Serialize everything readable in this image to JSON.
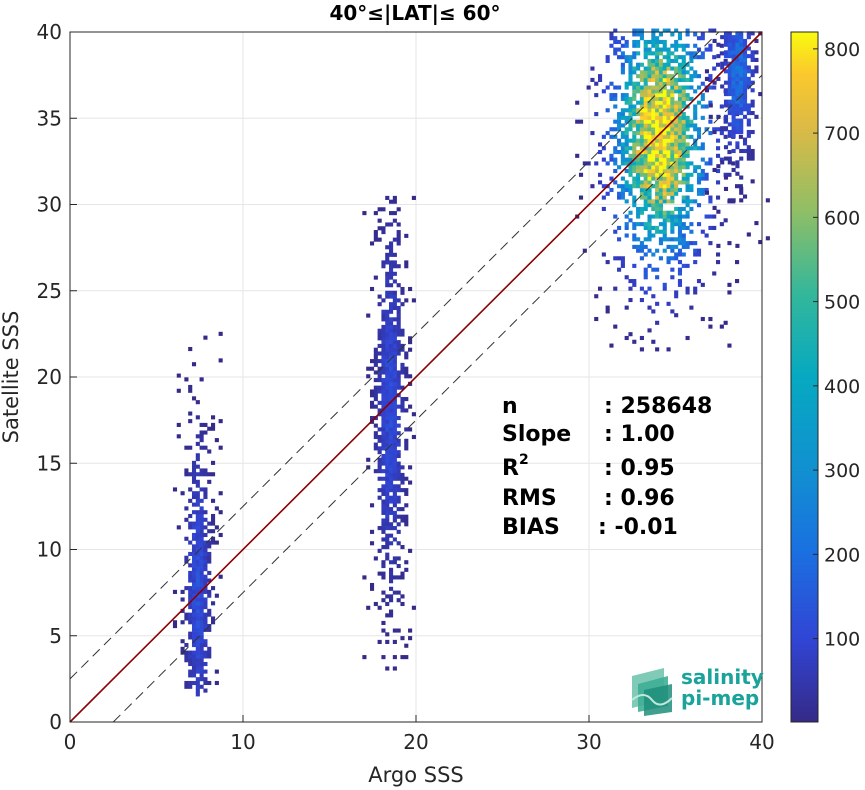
{
  "chart_data": {
    "type": "heatmap",
    "title": "40°≤|LAT|≤ 60°",
    "xlabel": "Argo SSS",
    "ylabel": "Satellite SSS",
    "xlim": [
      0,
      40
    ],
    "ylim": [
      0,
      40
    ],
    "xticks": [
      "0",
      "10",
      "20",
      "30",
      "40"
    ],
    "yticks": [
      "0",
      "5",
      "10",
      "15",
      "20",
      "25",
      "30",
      "35",
      "40"
    ],
    "grid": true,
    "colorbar": {
      "range": [
        1,
        820
      ],
      "ticks": [
        "100",
        "200",
        "300",
        "400",
        "500",
        "600",
        "700",
        "800"
      ],
      "colormap": "parula"
    },
    "reference_lines": [
      {
        "name": "1:1",
        "slope": 1,
        "intercept": 0,
        "style": "solid",
        "color": "#8b0000"
      },
      {
        "name": "+2.5 offset",
        "slope": 1,
        "intercept": 2.5,
        "style": "dashed",
        "color": "#333333"
      },
      {
        "name": "-2.5 offset",
        "slope": 1,
        "intercept": -2.5,
        "style": "dashed",
        "color": "#333333"
      }
    ],
    "clusters": [
      {
        "x_center": 7.3,
        "x_spread": 0.45,
        "y_range": [
          1.5,
          23.0
        ],
        "y_peak": 7.5,
        "peak_count": 120
      },
      {
        "x_center": 18.4,
        "x_spread": 0.5,
        "y_range": [
          3.0,
          30.5
        ],
        "y_peak": 18.0,
        "peak_count": 110
      },
      {
        "x_center": 34.0,
        "x_spread": 1.6,
        "y_range": [
          21.5,
          40.0
        ],
        "y_peak": 34.0,
        "peak_count": 820
      },
      {
        "x_center": 38.5,
        "x_spread": 0.6,
        "y_range": [
          27.5,
          40.0
        ],
        "y_peak": 37.5,
        "peak_count": 200
      }
    ],
    "stats": [
      {
        "label": "n",
        "value": ": 258648"
      },
      {
        "label": "Slope",
        "value": ": 1.00"
      },
      {
        "label": "R",
        "sup": "2",
        "value": ": 0.95"
      },
      {
        "label": "RMS",
        "value": ": 0.96"
      },
      {
        "label": "BIAS",
        "value": ": -0.01"
      }
    ]
  },
  "logo": {
    "line1": "salinity",
    "line2": "pi-mep"
  },
  "colors": {
    "one_to_one": "#8b0000",
    "dashed": "#333333",
    "grid": "#e6e6e6",
    "logo": "#1aa39a"
  }
}
